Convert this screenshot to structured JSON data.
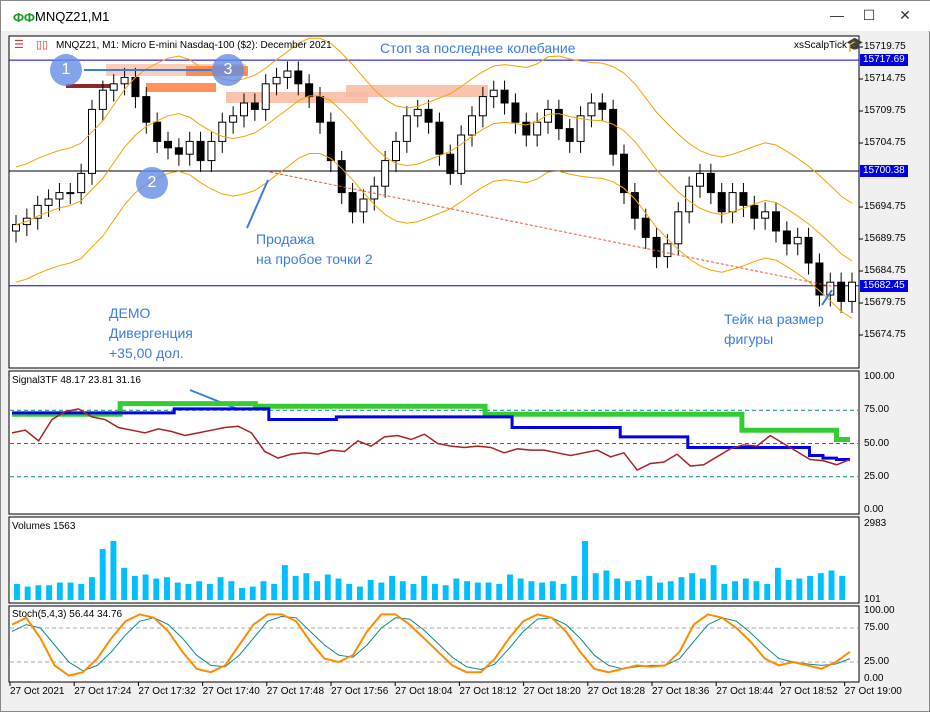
{
  "window": {
    "title": "MNQZ21,M1",
    "min": "—",
    "max": "☐",
    "close": "✕"
  },
  "chart": {
    "header": "MNQZ21, M1:  Micro E-mini Nasdaq-100 ($2): December 2021",
    "expert": "xsScalpTick",
    "price_axis": [
      "15719.75",
      "15714.75",
      "15709.75",
      "15704.75",
      "15694.75",
      "15689.75",
      "15684.75",
      "15679.75",
      "15674.75"
    ],
    "price_lines": [
      {
        "label": "15717.69",
        "price": 15717.69
      },
      {
        "label": "15700.38",
        "price": 15700.38
      },
      {
        "label": "15682.45",
        "price": 15682.45
      }
    ],
    "closes": [
      15692,
      15693,
      15695,
      15696,
      15697,
      15697,
      15700,
      15710,
      15713,
      15714,
      15715,
      15712,
      15708,
      15705,
      15704,
      15703,
      15705,
      15702,
      15705,
      15708,
      15709,
      15711,
      15710,
      15714,
      15715,
      15716,
      15714,
      15712,
      15708,
      15702,
      15697,
      15694,
      15696,
      15698,
      15702,
      15705,
      15709,
      15710,
      15708,
      15703,
      15700,
      15706,
      15709,
      15712,
      15713,
      15711,
      15708,
      15706,
      15708,
      15710,
      15707,
      15705,
      15709,
      15711,
      15710,
      15703,
      15697,
      15693,
      15690,
      15687,
      15689,
      15694,
      15698,
      15700,
      15697,
      15694,
      15697,
      15695,
      15693,
      15694,
      15691,
      15689,
      15690,
      15686,
      15681,
      15683,
      15680,
      15683
    ],
    "annotations": {
      "stop": "Стоп за последнее колебание",
      "sell1": "Продажа",
      "sell2": "на пробое точки 2",
      "demo1": "ДЕМО",
      "demo2": "Дивергенция",
      "demo3": "+35,00 дол.",
      "take1": "Тейк на размер",
      "take2": "фигуры",
      "p1": "1",
      "p2": "2",
      "p3": "3"
    }
  },
  "signal": {
    "label": "Signal3TF 48.17 23.81 31.16",
    "axis": [
      "100.00",
      "75.00",
      "50.00",
      "25.00",
      "0.00"
    ],
    "green": [
      72,
      72,
      72,
      72,
      72,
      72,
      72,
      72,
      80,
      80,
      80,
      80,
      80,
      80,
      80,
      80,
      80,
      80,
      78,
      78,
      78,
      78,
      78,
      78,
      78,
      78,
      78,
      78,
      78,
      78,
      78,
      78,
      78,
      78,
      78,
      72,
      72,
      72,
      72,
      72,
      72,
      72,
      72,
      72,
      72,
      72,
      72,
      72,
      72,
      72,
      72,
      72,
      72,
      72,
      60,
      60,
      60,
      60,
      60,
      60,
      60,
      53,
      53
    ],
    "blue": [
      73,
      73,
      73,
      73,
      73,
      73,
      73,
      73,
      73,
      73,
      73,
      73,
      76,
      76,
      76,
      76,
      76,
      76,
      76,
      68,
      68,
      68,
      68,
      68,
      70,
      70,
      70,
      70,
      70,
      70,
      70,
      70,
      70,
      70,
      70,
      70,
      70,
      62,
      62,
      62,
      62,
      62,
      62,
      62,
      62,
      55,
      55,
      55,
      55,
      55,
      47,
      47,
      47,
      47,
      47,
      47,
      47,
      47,
      47,
      41,
      39,
      38,
      38
    ],
    "red": [
      58,
      60,
      52,
      68,
      74,
      76,
      70,
      68,
      62,
      60,
      58,
      61,
      59,
      56,
      58,
      60,
      62,
      63,
      58,
      44,
      39,
      42,
      43,
      42,
      45,
      44,
      52,
      48,
      55,
      56,
      53,
      57,
      50,
      48,
      47,
      48,
      47,
      43,
      46,
      45,
      45,
      43,
      41,
      43,
      45,
      40,
      43,
      30,
      35,
      36,
      42,
      33,
      34,
      40,
      46,
      49,
      48,
      56,
      50,
      44,
      38,
      37,
      34,
      38
    ]
  },
  "volumes": {
    "label": "Volumes 1563",
    "axis_max": "2983",
    "axis_min": "101",
    "values": [
      600,
      500,
      550,
      550,
      650,
      650,
      600,
      850,
      1900,
      2200,
      1200,
      900,
      950,
      800,
      850,
      650,
      600,
      700,
      600,
      850,
      700,
      450,
      500,
      700,
      600,
      1300,
      900,
      1000,
      700,
      950,
      800,
      600,
      500,
      750,
      650,
      900,
      700,
      600,
      900,
      600,
      550,
      800,
      700,
      650,
      650,
      600,
      950,
      800,
      700,
      650,
      700,
      600,
      900,
      2200,
      1000,
      1100,
      800,
      700,
      750,
      900,
      650,
      700,
      850,
      1000,
      800,
      1300,
      600,
      700,
      800,
      700,
      600,
      1200,
      750,
      800,
      900,
      1000,
      1100,
      900
    ]
  },
  "stoch": {
    "label": "Stoch(5,4,3) 56.44 34.76",
    "axis": [
      "100.00",
      "75.00",
      "25.00",
      "0.00"
    ],
    "main": [
      80,
      90,
      60,
      20,
      5,
      10,
      30,
      60,
      85,
      95,
      90,
      70,
      40,
      15,
      10,
      20,
      50,
      80,
      95,
      95,
      85,
      55,
      30,
      25,
      35,
      70,
      95,
      95,
      80,
      60,
      40,
      20,
      10,
      10,
      30,
      60,
      85,
      95,
      90,
      70,
      40,
      15,
      10,
      15,
      20,
      18,
      20,
      40,
      80,
      95,
      90,
      75,
      55,
      30,
      20,
      25,
      20,
      15,
      25,
      40
    ],
    "signal": [
      70,
      80,
      75,
      50,
      25,
      12,
      20,
      40,
      65,
      85,
      90,
      80,
      60,
      35,
      20,
      18,
      35,
      60,
      85,
      92,
      90,
      70,
      50,
      35,
      32,
      50,
      75,
      90,
      88,
      72,
      52,
      32,
      18,
      14,
      22,
      45,
      70,
      88,
      90,
      80,
      60,
      35,
      20,
      15,
      18,
      20,
      20,
      30,
      55,
      80,
      90,
      85,
      68,
      48,
      30,
      25,
      22,
      20,
      22,
      30
    ]
  },
  "time_axis": [
    "27 Oct 2021",
    "27 Oct 17:24",
    "27 Oct 17:32",
    "27 Oct 17:40",
    "27 Oct 17:48",
    "27 Oct 17:56",
    "27 Oct 18:04",
    "27 Oct 18:12",
    "27 Oct 18:20",
    "27 Oct 18:28",
    "27 Oct 18:36",
    "27 Oct 18:44",
    "27 Oct 18:52",
    "27 Oct 19:00"
  ]
}
